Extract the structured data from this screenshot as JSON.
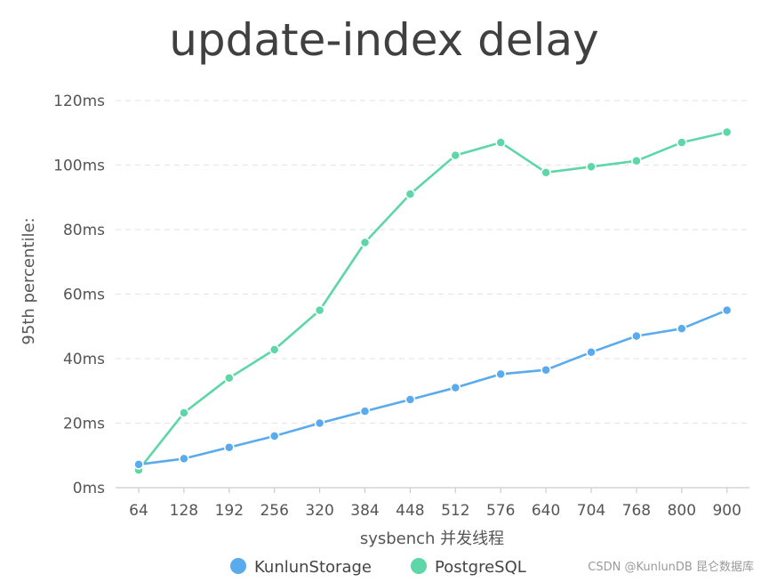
{
  "chart_data": {
    "type": "line",
    "title": "update-index delay",
    "xlabel": "sysbench 并发线程",
    "ylabel": "95th percentile:",
    "categories": [
      "64",
      "128",
      "192",
      "256",
      "320",
      "384",
      "448",
      "512",
      "576",
      "640",
      "704",
      "768",
      "800",
      "900"
    ],
    "y_ticks": [
      "0ms",
      "20ms",
      "40ms",
      "60ms",
      "80ms",
      "100ms",
      "120ms"
    ],
    "ylim": [
      0,
      120
    ],
    "y_unit": "ms",
    "grid": "horizontal dashed",
    "legend_position": "bottom",
    "series": [
      {
        "name": "KunlunStorage",
        "color": "#5aabed",
        "values": [
          7.2,
          9.0,
          12.5,
          16.0,
          20.0,
          23.7,
          27.3,
          31.0,
          35.2,
          36.5,
          42.0,
          47.0,
          49.3,
          55.0
        ]
      },
      {
        "name": "PostgreSQL",
        "color": "#5dd6a8",
        "values": [
          5.5,
          23.2,
          34.0,
          42.8,
          55.0,
          76.0,
          91.0,
          103.0,
          107.0,
          97.7,
          99.5,
          101.3,
          107.0,
          110.2
        ]
      }
    ]
  },
  "watermark": "CSDN @KunlunDB 昆仑数据库"
}
